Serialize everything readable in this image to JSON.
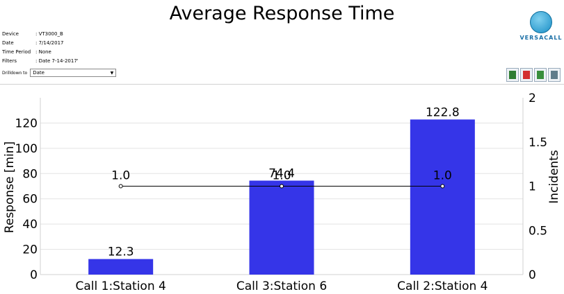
{
  "title": "Average Response Time",
  "meta": [
    {
      "key": "Device",
      "value": ": VT3000_B"
    },
    {
      "key": "Date",
      "value": ": 7/14/2017"
    },
    {
      "key": "Time Period",
      "value": ": None"
    },
    {
      "key": "Filters",
      "value": ": Date  7-14-2017'"
    }
  ],
  "drilldown": {
    "label": "Drilldown to",
    "value": "Date"
  },
  "logo": {
    "brand": "VERSACALL"
  },
  "toolbar": [
    {
      "icon": "export-csv-icon",
      "color": "#2e7d32"
    },
    {
      "icon": "export-pdf-icon",
      "color": "#d32f2f"
    },
    {
      "icon": "export-excel-icon",
      "color": "#388e3c"
    },
    {
      "icon": "print-icon",
      "color": "#607d8b"
    }
  ],
  "chart_data": {
    "type": "bar",
    "categories": [
      "Call 1:Station 4",
      "Call 3:Station 6",
      "Call 2:Station 4"
    ],
    "series": [
      {
        "type": "bar",
        "axis": "left",
        "values": [
          12.3,
          74.4,
          122.8
        ],
        "labels": [
          "12.3",
          "74.4",
          "122.8"
        ],
        "color": "#3535e8"
      },
      {
        "type": "line",
        "axis": "right",
        "values": [
          1.0,
          1.0,
          1.0
        ],
        "labels": [
          "1.0",
          "1.0",
          "1.0"
        ],
        "color": "#000000"
      }
    ],
    "ylabel": "Response [min]",
    "y2label": "Incidents",
    "ylim": [
      0,
      140
    ],
    "y2lim": [
      0,
      2
    ],
    "yticks": [
      "0",
      "20",
      "40",
      "60",
      "80",
      "100",
      "120"
    ],
    "y2ticks": [
      "0",
      "0.5",
      "1",
      "1.5",
      "2"
    ],
    "grid": true
  }
}
